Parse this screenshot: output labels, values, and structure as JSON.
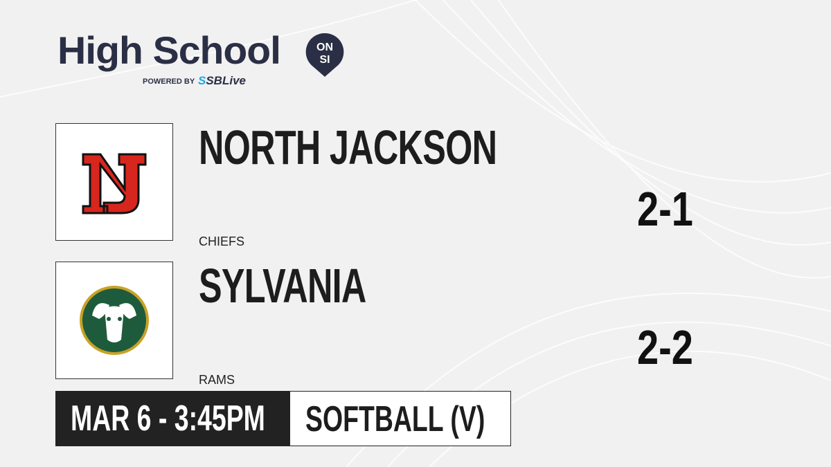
{
  "brand": {
    "title": "High School",
    "badge_top": "ON",
    "badge_bottom": "SI",
    "powered_by": "POWERED BY",
    "partner_prefix": "S",
    "partner": "SBLive",
    "colors": {
      "navy": "#2b2f45",
      "blue": "#1ea8e0"
    }
  },
  "teams": [
    {
      "name": "NORTH JACKSON",
      "mascot": "CHIEFS",
      "record": "2-1",
      "logo_text": "NJ",
      "logo_color": "#d7261e"
    },
    {
      "name": "SYLVANIA",
      "mascot": "RAMS",
      "record": "2-2",
      "logo_icon": "ram-icon",
      "logo_color": "#1e5b3c"
    }
  ],
  "game": {
    "datetime": "MAR 6 - 3:45PM",
    "sport": "SOFTBALL (V)"
  }
}
